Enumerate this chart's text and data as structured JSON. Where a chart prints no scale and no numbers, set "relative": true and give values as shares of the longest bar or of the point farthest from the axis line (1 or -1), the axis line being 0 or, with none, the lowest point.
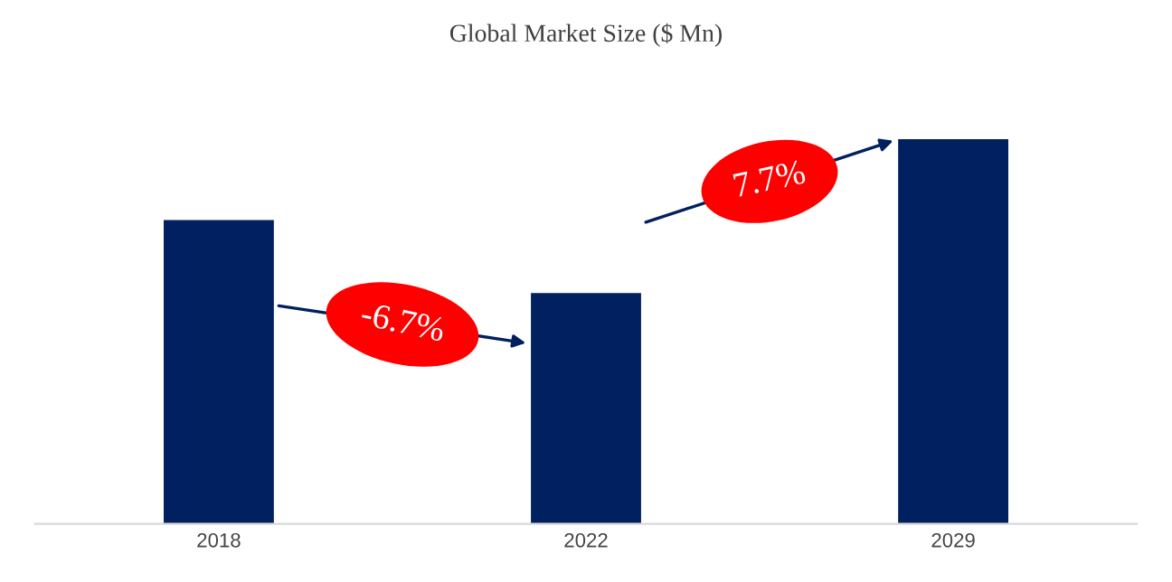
{
  "chart_data": {
    "type": "bar",
    "title": "Global Market Size ($ Mn)",
    "categories": [
      "2018",
      "2022",
      "2029"
    ],
    "values": [
      0.79,
      0.6,
      1
    ],
    "color": "#002060",
    "relative": true,
    "grid": false,
    "annotations": [
      "-6.7%",
      "7.7%"
    ]
  }
}
